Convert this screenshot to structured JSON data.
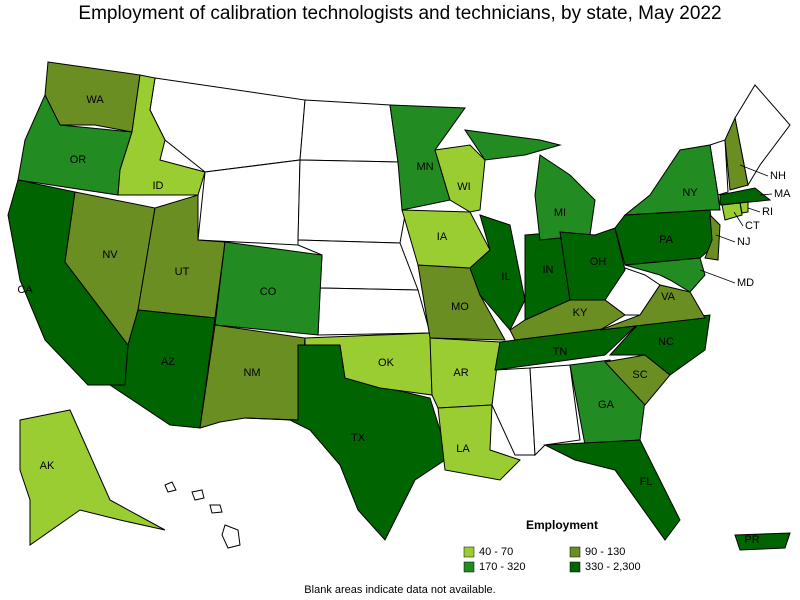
{
  "title": "Employment of calibration technologists and technicians, by state, May 2022",
  "states": [
    {
      "label": "WA",
      "color": "#6b8e23"
    },
    {
      "label": "OR",
      "color": "#228b22"
    },
    {
      "label": "CA",
      "color": "#006400"
    },
    {
      "label": "NV",
      "color": "#6b8e23"
    },
    {
      "label": "ID",
      "color": "#9acd32"
    },
    {
      "label": "UT",
      "color": "#6b8e23"
    },
    {
      "label": "AZ",
      "color": "#006400"
    },
    {
      "label": "CO",
      "color": "#228b22"
    },
    {
      "label": "NM",
      "color": "#6b8e23"
    },
    {
      "label": "TX",
      "color": "#006400"
    },
    {
      "label": "OK",
      "color": "#9acd32"
    },
    {
      "label": "AR",
      "color": "#9acd32"
    },
    {
      "label": "LA",
      "color": "#9acd32"
    },
    {
      "label": "MO",
      "color": "#6b8e23"
    },
    {
      "label": "IA",
      "color": "#9acd32"
    },
    {
      "label": "MN",
      "color": "#228b22"
    },
    {
      "label": "WI",
      "color": "#9acd32"
    },
    {
      "label": "IL",
      "color": "#006400"
    },
    {
      "label": "IN",
      "color": "#006400"
    },
    {
      "label": "MI",
      "color": "#228b22"
    },
    {
      "label": "OH",
      "color": "#006400"
    },
    {
      "label": "KY",
      "color": "#6b8e23"
    },
    {
      "label": "TN",
      "color": "#006400"
    },
    {
      "label": "GA",
      "color": "#228b22"
    },
    {
      "label": "FL",
      "color": "#006400"
    },
    {
      "label": "SC",
      "color": "#6b8e23"
    },
    {
      "label": "NC",
      "color": "#006400"
    },
    {
      "label": "VA",
      "color": "#6b8e23"
    },
    {
      "label": "PA",
      "color": "#006400"
    },
    {
      "label": "NY",
      "color": "#228b22"
    },
    {
      "label": "NH",
      "color": "#6b8e23"
    },
    {
      "label": "MA",
      "color": "#006400"
    },
    {
      "label": "RI",
      "color": "#9acd32"
    },
    {
      "label": "CT",
      "color": "#9acd32"
    },
    {
      "label": "NJ",
      "color": "#6b8e23"
    },
    {
      "label": "MD",
      "color": "#228b22"
    },
    {
      "label": "AK",
      "color": "#9acd32"
    },
    {
      "label": "PR",
      "color": "#006400"
    }
  ],
  "legend": {
    "title": "Employment",
    "items": [
      {
        "label": "40 - 70",
        "color": "#9acd32"
      },
      {
        "label": "90 - 130",
        "color": "#6b8e23"
      },
      {
        "label": "170 - 320",
        "color": "#228b22"
      },
      {
        "label": "330 - 2,300",
        "color": "#006400"
      }
    ]
  },
  "footnote": "Blank areas indicate data not available."
}
